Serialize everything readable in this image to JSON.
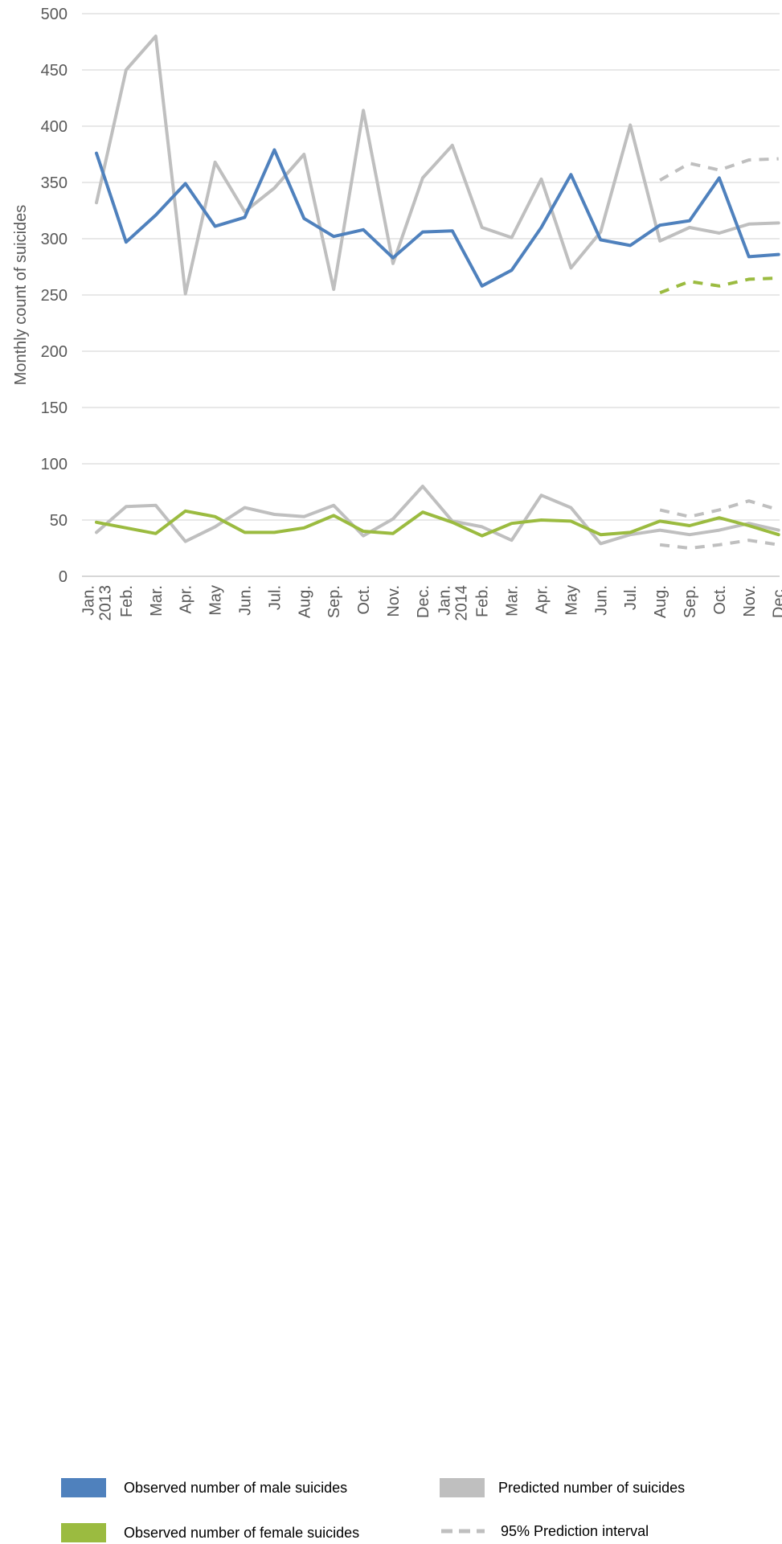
{
  "chart_data": {
    "type": "line",
    "ylabel": "Monthly count of suicides",
    "ylim": [
      0,
      500
    ],
    "yticks": [
      0,
      50,
      100,
      150,
      200,
      250,
      300,
      350,
      400,
      450,
      500
    ],
    "grid": true,
    "x_tick_labels": [
      "Jan.\n2013",
      "Feb.",
      "Mar.",
      "Apr.",
      "May",
      "Jun.",
      "Jul.",
      "Aug.",
      "Sep.",
      "Oct.",
      "Nov.",
      "Dec.",
      "Jan.\n2014",
      "Feb.",
      "Mar.",
      "Apr.",
      "May",
      "Jun.",
      "Jul.",
      "Aug.",
      "Sep.",
      "Oct.",
      "Nov.",
      "Dec."
    ],
    "series": [
      {
        "name": "Observed number of male suicides",
        "color": "#4F81BD",
        "style": "solid",
        "values": [
          376,
          297,
          321,
          349,
          311,
          319,
          379,
          318,
          302,
          308,
          283,
          306,
          307,
          258,
          272,
          310,
          357,
          299,
          294,
          312,
          316,
          354,
          284,
          286
        ]
      },
      {
        "name": "Predicted number of suicides",
        "color": "#BFBFBF",
        "style": "solid",
        "values": [
          332,
          450,
          480,
          251,
          368,
          324,
          345,
          375,
          255,
          414,
          278,
          354,
          383,
          310,
          301,
          353,
          274,
          306,
          401,
          298,
          310,
          305,
          313,
          314
        ]
      },
      {
        "name": "Observed number of female suicides",
        "color": "#9BBB40",
        "style": "solid",
        "values": [
          48,
          43,
          38,
          58,
          53,
          39,
          39,
          43,
          54,
          40,
          38,
          57,
          48,
          36,
          47,
          50,
          49,
          37,
          39,
          49,
          45,
          52,
          45,
          37
        ]
      },
      {
        "name": "Predicted number of female suicides",
        "color": "#BFBFBF",
        "style": "solid",
        "in_legend": false,
        "values": [
          39,
          62,
          63,
          31,
          44,
          61,
          55,
          53,
          63,
          36,
          51,
          80,
          49,
          44,
          32,
          72,
          61,
          29,
          37,
          41,
          37,
          41,
          47,
          41
        ]
      },
      {
        "name": "95% Prediction interval",
        "color": "#BFBFBF",
        "style": "dashed",
        "start_index": 19,
        "values": [
          352,
          367,
          361,
          370,
          371
        ]
      },
      {
        "name": "95% Prediction interval",
        "color": "#9BBB40",
        "style": "dashed",
        "start_index": 19,
        "in_legend": false,
        "values": [
          252,
          262,
          258,
          264,
          265
        ]
      },
      {
        "name": "95% Prediction interval",
        "color": "#BFBFBF",
        "style": "dashed",
        "start_index": 19,
        "in_legend": false,
        "values": [
          59,
          53,
          59,
          67,
          59
        ]
      },
      {
        "name": "95% Prediction interval",
        "color": "#BFBFBF",
        "style": "dashed",
        "start_index": 19,
        "in_legend": false,
        "values": [
          28,
          25,
          28,
          32,
          28
        ]
      }
    ]
  },
  "legend": {
    "items": [
      {
        "label": "Observed number of male suicides",
        "color": "#4F81BD",
        "style": "solid"
      },
      {
        "label": "Predicted number of suicides",
        "color": "#BFBFBF",
        "style": "solid"
      },
      {
        "label": "Observed number of female suicides",
        "color": "#9BBB40",
        "style": "solid"
      },
      {
        "label": "95% Prediction interval",
        "color": "#BFBFBF",
        "style": "dashed"
      }
    ]
  }
}
